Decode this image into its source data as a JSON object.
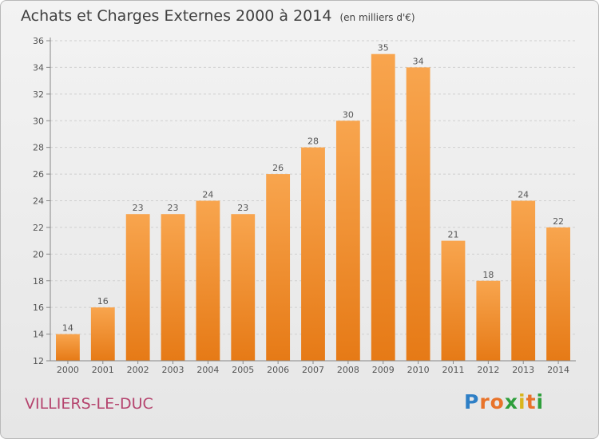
{
  "header": {
    "title": "Achats et Charges Externes 2000 à 2014",
    "unit": "(en milliers d'€)"
  },
  "footer": {
    "place": "VILLIERS-LE-DUC",
    "logo": "Proxiti"
  },
  "colors": {
    "bar_top": "#f8a54e",
    "bar_bottom": "#e67a16",
    "axis": "#888888",
    "grid": "#cfcfcf"
  },
  "chart_data": {
    "type": "bar",
    "title": "Achats et Charges Externes 2000 à 2014",
    "subtitle": "(en milliers d'€)",
    "categories": [
      "2000",
      "2001",
      "2002",
      "2003",
      "2004",
      "2005",
      "2006",
      "2007",
      "2008",
      "2009",
      "2010",
      "2011",
      "2012",
      "2013",
      "2014"
    ],
    "values": [
      14,
      16,
      23,
      23,
      24,
      23,
      26,
      28,
      30,
      35,
      34,
      21,
      18,
      24,
      22
    ],
    "ylim": [
      12,
      36
    ],
    "yticks": [
      12,
      14,
      16,
      18,
      20,
      22,
      24,
      26,
      28,
      30,
      32,
      34,
      36
    ],
    "grid": true
  }
}
